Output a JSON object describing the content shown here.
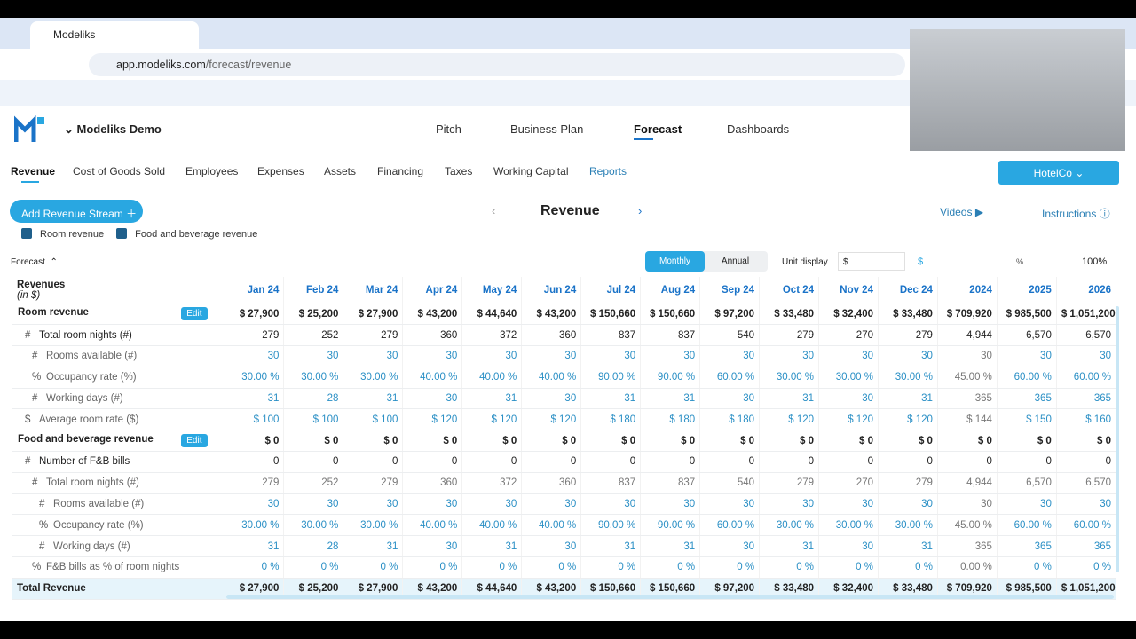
{
  "browser": {
    "tab_title": "Modeliks",
    "url_host": "app.modeliks.com",
    "url_path": "/forecast/revenue"
  },
  "header": {
    "company": "Modeliks Demo",
    "nav": [
      "Pitch",
      "Business Plan",
      "Forecast",
      "Dashboards"
    ]
  },
  "tabs": [
    "Revenue",
    "Cost of Goods Sold",
    "Employees",
    "Expenses",
    "Assets",
    "Financing",
    "Taxes",
    "Working Capital",
    "Reports"
  ],
  "company_button": "HotelCo",
  "toolbar": {
    "add_button": "Add Revenue Stream",
    "title": "Revenue",
    "videos": "Videos",
    "instructions": "Instructions"
  },
  "filters": [
    "Room revenue",
    "Food and beverage revenue"
  ],
  "controls": {
    "section": "Forecast",
    "toggle": [
      "Monthly",
      "Annual"
    ],
    "unit_label": "Unit display",
    "unit_value": "$",
    "currency_icon": "$",
    "percent_icon": "%",
    "zoom": "100%"
  },
  "table": {
    "title": "Revenues",
    "subtitle": "(in $)",
    "columns": [
      "Jan 24",
      "Feb 24",
      "Mar 24",
      "Apr 24",
      "May 24",
      "Jun 24",
      "Jul 24",
      "Aug 24",
      "Sep 24",
      "Oct 24",
      "Nov 24",
      "Dec 24",
      "2024",
      "2025",
      "2026"
    ],
    "rows": [
      {
        "label": "Room revenue",
        "kind": "stream",
        "depth": 0,
        "edit": "Edit",
        "values": [
          "$ 27,900",
          "$ 25,200",
          "$ 27,900",
          "$ 43,200",
          "$ 44,640",
          "$ 43,200",
          "$ 150,660",
          "$ 150,660",
          "$ 97,200",
          "$ 33,480",
          "$ 32,400",
          "$ 33,480",
          "$ 709,920",
          "$ 985,500",
          "$ 1,051,200"
        ]
      },
      {
        "label": "Total room nights (#)",
        "prefix": "#",
        "kind": "calc",
        "depth": 1,
        "values": [
          "279",
          "252",
          "279",
          "360",
          "372",
          "360",
          "837",
          "837",
          "540",
          "279",
          "270",
          "279",
          "4,944",
          "6,570",
          "6,570"
        ]
      },
      {
        "label": "Rooms available (#)",
        "prefix": "#",
        "kind": "input",
        "depth": 2,
        "values": [
          "30",
          "30",
          "30",
          "30",
          "30",
          "30",
          "30",
          "30",
          "30",
          "30",
          "30",
          "30",
          "30",
          "30",
          "30"
        ]
      },
      {
        "label": "Occupancy rate (%)",
        "prefix": "%",
        "kind": "input",
        "depth": 2,
        "values": [
          "30.00 %",
          "30.00 %",
          "30.00 %",
          "40.00 %",
          "40.00 %",
          "40.00 %",
          "90.00 %",
          "90.00 %",
          "60.00 %",
          "30.00 %",
          "30.00 %",
          "30.00 %",
          "45.00 %",
          "60.00 %",
          "60.00 %"
        ]
      },
      {
        "label": "Working days (#)",
        "prefix": "#",
        "kind": "input",
        "depth": 2,
        "values": [
          "31",
          "28",
          "31",
          "30",
          "31",
          "30",
          "31",
          "31",
          "30",
          "31",
          "30",
          "31",
          "365",
          "365",
          "365"
        ]
      },
      {
        "label": "Average room rate ($)",
        "prefix": "$",
        "kind": "input",
        "depth": 1,
        "values": [
          "$ 100",
          "$ 100",
          "$ 100",
          "$ 120",
          "$ 120",
          "$ 120",
          "$ 180",
          "$ 180",
          "$ 180",
          "$ 120",
          "$ 120",
          "$ 120",
          "$ 144",
          "$ 150",
          "$ 160"
        ]
      },
      {
        "label": "Food and beverage revenue",
        "kind": "stream",
        "depth": 0,
        "edit": "Edit",
        "values": [
          "$ 0",
          "$ 0",
          "$ 0",
          "$ 0",
          "$ 0",
          "$ 0",
          "$ 0",
          "$ 0",
          "$ 0",
          "$ 0",
          "$ 0",
          "$ 0",
          "$ 0",
          "$ 0",
          "$ 0"
        ]
      },
      {
        "label": "Number of F&B bills",
        "prefix": "#",
        "kind": "calc",
        "depth": 1,
        "values": [
          "0",
          "0",
          "0",
          "0",
          "0",
          "0",
          "0",
          "0",
          "0",
          "0",
          "0",
          "0",
          "0",
          "0",
          "0"
        ]
      },
      {
        "label": "Total room nights (#)",
        "prefix": "#",
        "kind": "calcsub",
        "depth": 2,
        "values": [
          "279",
          "252",
          "279",
          "360",
          "372",
          "360",
          "837",
          "837",
          "540",
          "279",
          "270",
          "279",
          "4,944",
          "6,570",
          "6,570"
        ]
      },
      {
        "label": "Rooms available (#)",
        "prefix": "#",
        "kind": "input",
        "depth": 3,
        "values": [
          "30",
          "30",
          "30",
          "30",
          "30",
          "30",
          "30",
          "30",
          "30",
          "30",
          "30",
          "30",
          "30",
          "30",
          "30"
        ]
      },
      {
        "label": "Occupancy rate (%)",
        "prefix": "%",
        "kind": "input",
        "depth": 3,
        "values": [
          "30.00 %",
          "30.00 %",
          "30.00 %",
          "40.00 %",
          "40.00 %",
          "40.00 %",
          "90.00 %",
          "90.00 %",
          "60.00 %",
          "30.00 %",
          "30.00 %",
          "30.00 %",
          "45.00 %",
          "60.00 %",
          "60.00 %"
        ]
      },
      {
        "label": "Working days (#)",
        "prefix": "#",
        "kind": "input",
        "depth": 3,
        "values": [
          "31",
          "28",
          "31",
          "30",
          "31",
          "30",
          "31",
          "31",
          "30",
          "31",
          "30",
          "31",
          "365",
          "365",
          "365"
        ]
      },
      {
        "label": "F&B bills as % of room nights",
        "prefix": "%",
        "kind": "input",
        "depth": 2,
        "values": [
          "0 %",
          "0 %",
          "0 %",
          "0 %",
          "0 %",
          "0 %",
          "0 %",
          "0 %",
          "0 %",
          "0 %",
          "0 %",
          "0 %",
          "0.00 %",
          "0 %",
          "0 %"
        ]
      }
    ],
    "total": {
      "label": "Total Revenue",
      "values": [
        "$ 27,900",
        "$ 25,200",
        "$ 27,900",
        "$ 43,200",
        "$ 44,640",
        "$ 43,200",
        "$ 150,660",
        "$ 150,660",
        "$ 97,200",
        "$ 33,480",
        "$ 32,400",
        "$ 33,480",
        "$ 709,920",
        "$ 985,500",
        "$ 1,051,200"
      ]
    }
  }
}
